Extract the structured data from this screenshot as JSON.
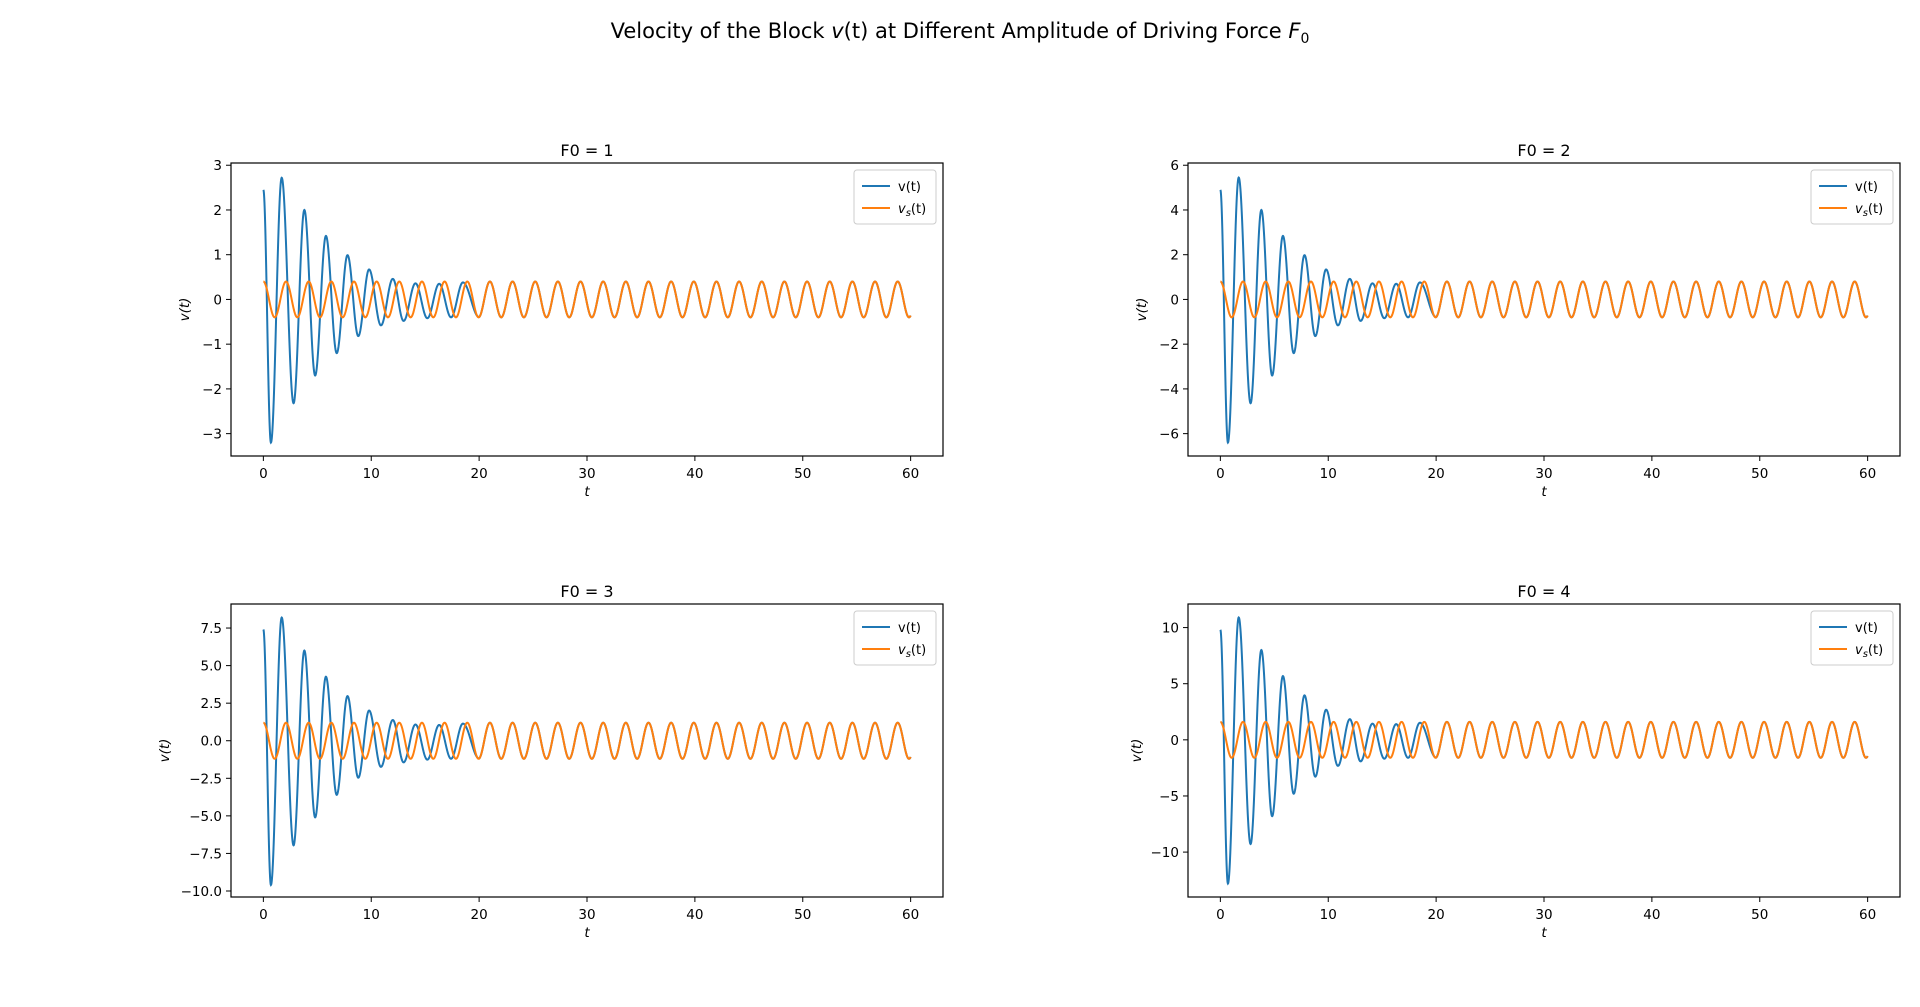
{
  "figure": {
    "suptitle_prefix": "Velocity of the Block ",
    "suptitle_v": "v",
    "suptitle_t": "(t)",
    "suptitle_mid": " at Different Amplitude of Driving Force ",
    "suptitle_F": "F",
    "suptitle_sub": "0"
  },
  "colors": {
    "v": "#1f77b4",
    "vs": "#ff7f0e"
  },
  "chart_data": [
    {
      "type": "line",
      "title": "F0 = 1",
      "xlabel": "t",
      "ylabel": "v(t)",
      "F0": 1,
      "xlim": [
        -3,
        63
      ],
      "ylim": [
        -3.5,
        3.05
      ],
      "xticks": [
        0,
        10,
        20,
        30,
        40,
        50,
        60
      ],
      "yticks": [
        -3,
        -2,
        -1,
        0,
        1,
        2,
        3
      ],
      "ytick_labels": [
        "−3",
        "−2",
        "−1",
        "0",
        "1",
        "2",
        "3"
      ],
      "legend": {
        "position": "upper right",
        "entries": [
          "v(t)",
          "v_s(t)"
        ]
      },
      "series": [
        {
          "name": "v(t)",
          "t0": 0,
          "t1": 60,
          "peaks": [
            [
              0,
              2.45
            ],
            [
              0.7,
              -3.2
            ],
            [
              1.7,
              2.72
            ],
            [
              2.8,
              -2.32
            ],
            [
              3.8,
              2.0
            ],
            [
              4.8,
              -1.7
            ],
            [
              5.8,
              1.42
            ],
            [
              6.8,
              -1.2
            ],
            [
              7.8,
              0.99
            ],
            [
              8.8,
              -0.82
            ],
            [
              9.8,
              0.67
            ],
            [
              10.9,
              -0.58
            ],
            [
              12.0,
              0.46
            ],
            [
              13.0,
              -0.48
            ],
            [
              14.1,
              0.36
            ],
            [
              15.2,
              -0.42
            ],
            [
              16.3,
              0.35
            ],
            [
              17.4,
              -0.4
            ],
            [
              18.5,
              0.38
            ]
          ],
          "transient_end": 20
        },
        {
          "name": "v_s(t)",
          "amplitude": 0.4,
          "period": 2.1,
          "phase": 0.3
        }
      ]
    },
    {
      "type": "line",
      "title": "F0 = 2",
      "xlabel": "t",
      "ylabel": "v(t)",
      "F0": 2,
      "xlim": [
        -3,
        63
      ],
      "ylim": [
        -7.0,
        6.1
      ],
      "xticks": [
        0,
        10,
        20,
        30,
        40,
        50,
        60
      ],
      "yticks": [
        -6,
        -4,
        -2,
        0,
        2,
        4,
        6
      ],
      "ytick_labels": [
        "−6",
        "−4",
        "−2",
        "0",
        "2",
        "4",
        "6"
      ],
      "legend": {
        "position": "upper right",
        "entries": [
          "v(t)",
          "v_s(t)"
        ]
      },
      "series": [
        {
          "name": "v(t)",
          "t0": 0,
          "t1": 60,
          "peaks": [
            [
              0,
              4.9
            ],
            [
              0.7,
              -6.4
            ],
            [
              1.7,
              5.45
            ],
            [
              2.8,
              -4.64
            ],
            [
              3.8,
              4.0
            ],
            [
              4.8,
              -3.4
            ],
            [
              5.8,
              2.84
            ],
            [
              6.8,
              -2.4
            ],
            [
              7.8,
              1.98
            ],
            [
              8.8,
              -1.64
            ],
            [
              9.8,
              1.34
            ],
            [
              10.9,
              -1.16
            ],
            [
              12.0,
              0.92
            ],
            [
              13.0,
              -0.96
            ],
            [
              14.1,
              0.72
            ],
            [
              15.2,
              -0.84
            ],
            [
              16.3,
              0.7
            ],
            [
              17.4,
              -0.8
            ],
            [
              18.5,
              0.76
            ]
          ],
          "transient_end": 20
        },
        {
          "name": "v_s(t)",
          "amplitude": 0.8,
          "period": 2.1,
          "phase": 0.6
        }
      ]
    },
    {
      "type": "line",
      "title": "F0 = 3",
      "xlabel": "t",
      "ylabel": "v(t)",
      "F0": 3,
      "xlim": [
        -3,
        63
      ],
      "ylim": [
        -10.4,
        9.1
      ],
      "xticks": [
        0,
        10,
        20,
        30,
        40,
        50,
        60
      ],
      "yticks": [
        -10,
        -7.5,
        -5,
        -2.5,
        0,
        2.5,
        5,
        7.5
      ],
      "ytick_labels": [
        "−10.0",
        "−7.5",
        "−5.0",
        "−2.5",
        "0.0",
        "2.5",
        "5.0",
        "7.5"
      ],
      "legend": {
        "position": "upper right",
        "entries": [
          "v(t)",
          "v_s(t)"
        ]
      },
      "series": [
        {
          "name": "v(t)",
          "t0": 0,
          "t1": 60,
          "peaks": [
            [
              0,
              7.4
            ],
            [
              0.7,
              -9.6
            ],
            [
              1.7,
              8.2
            ],
            [
              2.8,
              -6.96
            ],
            [
              3.8,
              6.0
            ],
            [
              4.8,
              -5.1
            ],
            [
              5.8,
              4.26
            ],
            [
              6.8,
              -3.6
            ],
            [
              7.8,
              2.97
            ],
            [
              8.8,
              -2.46
            ],
            [
              9.8,
              2.01
            ],
            [
              10.9,
              -1.74
            ],
            [
              12.0,
              1.38
            ],
            [
              13.0,
              -1.44
            ],
            [
              14.1,
              1.08
            ],
            [
              15.2,
              -1.26
            ],
            [
              16.3,
              1.05
            ],
            [
              17.4,
              -1.2
            ],
            [
              18.5,
              1.14
            ]
          ],
          "transient_end": 20
        },
        {
          "name": "v_s(t)",
          "amplitude": 1.2,
          "period": 2.1,
          "phase": 0.9
        }
      ]
    },
    {
      "type": "line",
      "title": "F0 = 4",
      "xlabel": "t",
      "ylabel": "v(t)",
      "F0": 4,
      "xlim": [
        -3,
        63
      ],
      "ylim": [
        -14.0,
        12.1
      ],
      "xticks": [
        0,
        10,
        20,
        30,
        40,
        50,
        60
      ],
      "yticks": [
        -10,
        -5,
        0,
        5,
        10
      ],
      "ytick_labels": [
        "−10",
        "−5",
        "0",
        "5",
        "10"
      ],
      "legend": {
        "position": "upper right",
        "entries": [
          "v(t)",
          "v_s(t)"
        ]
      },
      "series": [
        {
          "name": "v(t)",
          "t0": 0,
          "t1": 60,
          "peaks": [
            [
              0,
              9.8
            ],
            [
              0.7,
              -12.8
            ],
            [
              1.7,
              10.9
            ],
            [
              2.8,
              -9.28
            ],
            [
              3.8,
              8.0
            ],
            [
              4.8,
              -6.8
            ],
            [
              5.8,
              5.68
            ],
            [
              6.8,
              -4.8
            ],
            [
              7.8,
              3.96
            ],
            [
              8.8,
              -3.28
            ],
            [
              9.8,
              2.68
            ],
            [
              10.9,
              -2.32
            ],
            [
              12.0,
              1.84
            ],
            [
              13.0,
              -1.92
            ],
            [
              14.1,
              1.44
            ],
            [
              15.2,
              -1.68
            ],
            [
              16.3,
              1.4
            ],
            [
              17.4,
              -1.6
            ],
            [
              18.5,
              1.52
            ]
          ],
          "transient_end": 20
        },
        {
          "name": "v_s(t)",
          "amplitude": 1.6,
          "period": 2.1,
          "phase": 1.2
        }
      ]
    }
  ]
}
